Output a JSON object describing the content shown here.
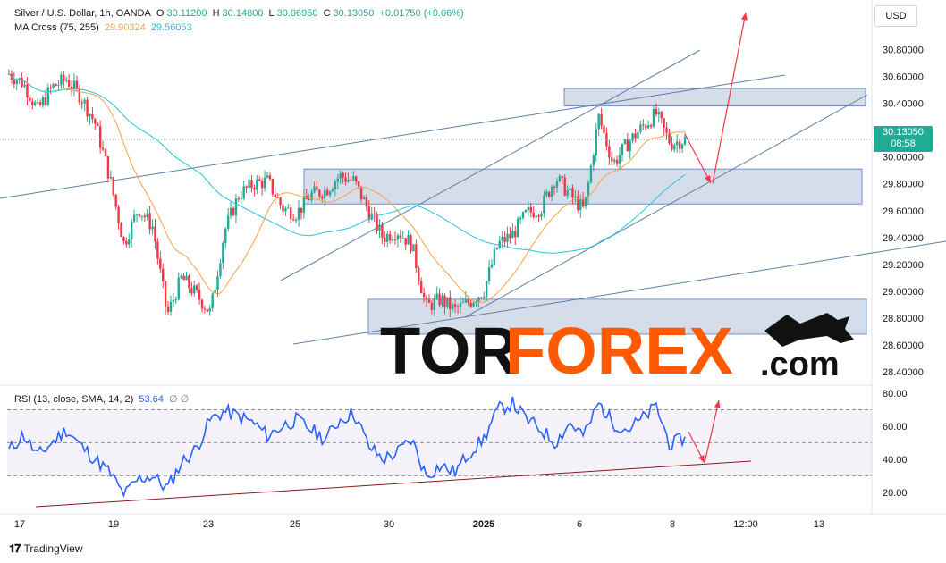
{
  "header": {
    "symbol": "Silver / U.S. Dollar, 1h, OANDA",
    "o_label": "O",
    "o_value": "30.11200",
    "h_label": "H",
    "h_value": "30.14800",
    "l_label": "L",
    "l_value": "30.06950",
    "c_label": "C",
    "c_value": "30.13050",
    "change": "+0.01750 (+0.06%)",
    "ma_label": "MA Cross (75, 255)",
    "ma_fast_value": "29.90324",
    "ma_slow_value": "29.56053",
    "rsi_label": "RSI (13, close, SMA, 14, 2)",
    "rsi_value": "53.64",
    "rsi_extra": "∅ ∅"
  },
  "currency_button": "USD",
  "price_badge": {
    "price": "30.13050",
    "countdown": "08:58"
  },
  "footer": {
    "brand": "TradingView"
  },
  "watermark": {
    "part1": "TOR",
    "part2": "FOREX",
    "part3": ".com"
  },
  "colors": {
    "up": "#22ab94",
    "down": "#f23645",
    "ma_fast": "#f7a24b",
    "ma_slow": "#26c6da",
    "rsi": "#2962ff",
    "arrow": "#f23645",
    "zone": "#b2c1d9",
    "line": "#5b7fa6",
    "watermark_dark": "#111111",
    "watermark_orange": "#ff5a00"
  },
  "chart_data": {
    "type": "candlestick",
    "price_axis": {
      "ticks": [
        "30.80000",
        "30.60000",
        "30.40000",
        "30.20000",
        "30.00000",
        "29.80000",
        "29.60000",
        "29.40000",
        "29.20000",
        "29.00000",
        "28.80000",
        "28.60000",
        "28.40000"
      ],
      "range": [
        28.32,
        30.95
      ]
    },
    "rsi_axis": {
      "ticks": [
        "80.00",
        "60.00",
        "40.00",
        "20.00"
      ],
      "range": [
        15,
        80
      ],
      "bands": [
        30,
        50,
        70
      ]
    },
    "time_axis": {
      "labels": [
        "17",
        "19",
        "23",
        "25",
        "30",
        "2025",
        "6",
        "8",
        "12:00",
        "13"
      ]
    },
    "zones": [
      {
        "price_top": 30.51,
        "price_bottom": 30.38
      },
      {
        "price_top": 29.91,
        "price_bottom": 29.65
      },
      {
        "price_top": 28.94,
        "price_bottom": 28.68
      }
    ],
    "candle_path": [
      [
        30.62,
        "17"
      ],
      [
        30.55,
        ""
      ],
      [
        30.35,
        ""
      ],
      [
        30.52,
        ""
      ],
      [
        30.58,
        ""
      ],
      [
        30.45,
        ""
      ],
      [
        30.25,
        ""
      ],
      [
        29.85,
        "19"
      ],
      [
        29.35,
        ""
      ],
      [
        29.62,
        ""
      ],
      [
        29.48,
        ""
      ],
      [
        28.82,
        ""
      ],
      [
        29.1,
        ""
      ],
      [
        28.98,
        ""
      ],
      [
        28.84,
        ""
      ],
      [
        29.45,
        ""
      ],
      [
        29.72,
        "23"
      ],
      [
        29.8,
        ""
      ],
      [
        29.82,
        ""
      ],
      [
        29.62,
        ""
      ],
      [
        29.58,
        ""
      ],
      [
        29.72,
        "25"
      ],
      [
        29.75,
        ""
      ],
      [
        29.86,
        ""
      ],
      [
        29.82,
        ""
      ],
      [
        29.6,
        ""
      ],
      [
        29.4,
        ""
      ],
      [
        29.45,
        ""
      ],
      [
        29.35,
        "30"
      ],
      [
        28.88,
        ""
      ],
      [
        28.94,
        ""
      ],
      [
        28.86,
        ""
      ],
      [
        28.92,
        ""
      ],
      [
        29.0,
        ""
      ],
      [
        29.35,
        "2025"
      ],
      [
        29.42,
        ""
      ],
      [
        29.58,
        ""
      ],
      [
        29.62,
        ""
      ],
      [
        29.85,
        ""
      ],
      [
        29.72,
        ""
      ],
      [
        29.6,
        "6"
      ],
      [
        30.3,
        ""
      ],
      [
        29.95,
        ""
      ],
      [
        30.1,
        ""
      ],
      [
        30.22,
        ""
      ],
      [
        30.32,
        ""
      ],
      [
        30.1,
        "8"
      ],
      [
        30.13,
        ""
      ]
    ],
    "rsi_path": [
      45,
      55,
      42,
      50,
      58,
      48,
      40,
      32,
      18,
      28,
      30,
      22,
      38,
      46,
      64,
      69,
      66,
      62,
      54,
      60,
      64,
      58,
      52,
      64,
      68,
      48,
      40,
      44,
      52,
      30,
      36,
      32,
      44,
      52,
      70,
      74,
      64,
      58,
      50,
      62,
      54,
      74,
      62,
      58,
      64,
      72,
      48,
      53.64
    ]
  }
}
